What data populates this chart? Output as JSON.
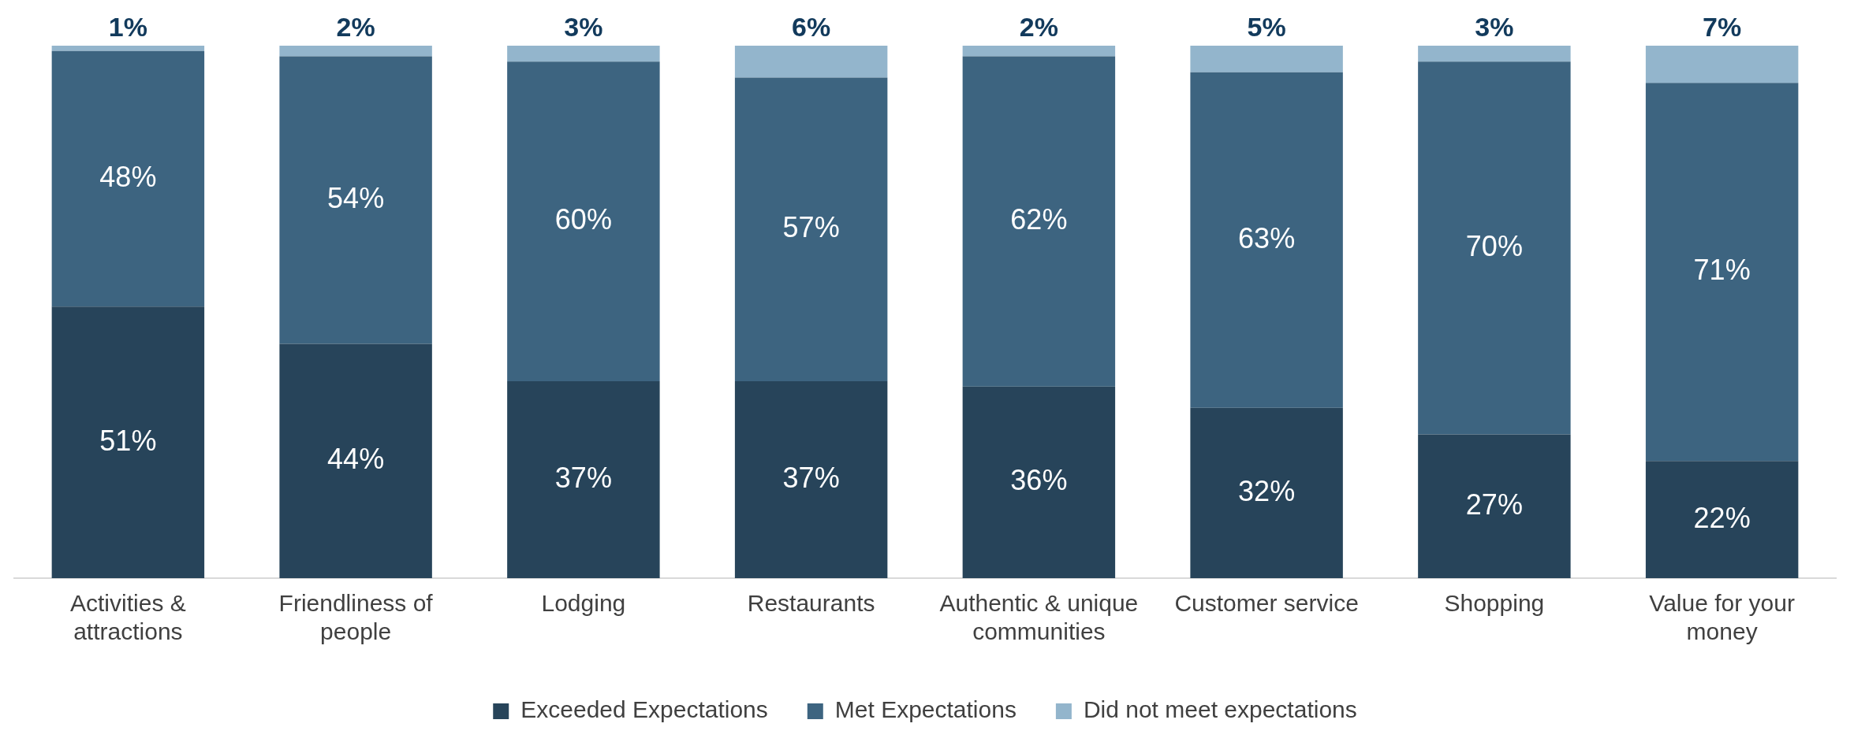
{
  "chart_data": {
    "type": "bar",
    "stacked": true,
    "legend": "bottom",
    "grid": false,
    "categories": [
      "Activities & attractions",
      "Friendliness of people",
      "Lodging",
      "Restaurants",
      "Authentic & unique communities",
      "Customer service",
      "Shopping",
      "Value for your money"
    ],
    "series": [
      {
        "name": "Exceeded Expectations",
        "color": "#27445a",
        "values": [
          51,
          44,
          37,
          37,
          36,
          32,
          27,
          22
        ],
        "value_labels": [
          "51%",
          "44%",
          "37%",
          "37%",
          "36%",
          "32%",
          "27%",
          "22%"
        ]
      },
      {
        "name": "Met Expectations",
        "color": "#3d6480",
        "values": [
          48,
          54,
          60,
          57,
          62,
          63,
          70,
          71
        ],
        "value_labels": [
          "48%",
          "54%",
          "60%",
          "57%",
          "62%",
          "63%",
          "70%",
          "71%"
        ]
      },
      {
        "name": "Did not meet expectations",
        "color": "#93b5cc",
        "values": [
          1,
          2,
          3,
          6,
          2,
          5,
          3,
          7
        ],
        "value_labels": [
          "1%",
          "2%",
          "3%",
          "6%",
          "2%",
          "5%",
          "3%",
          "7%"
        ]
      }
    ]
  }
}
